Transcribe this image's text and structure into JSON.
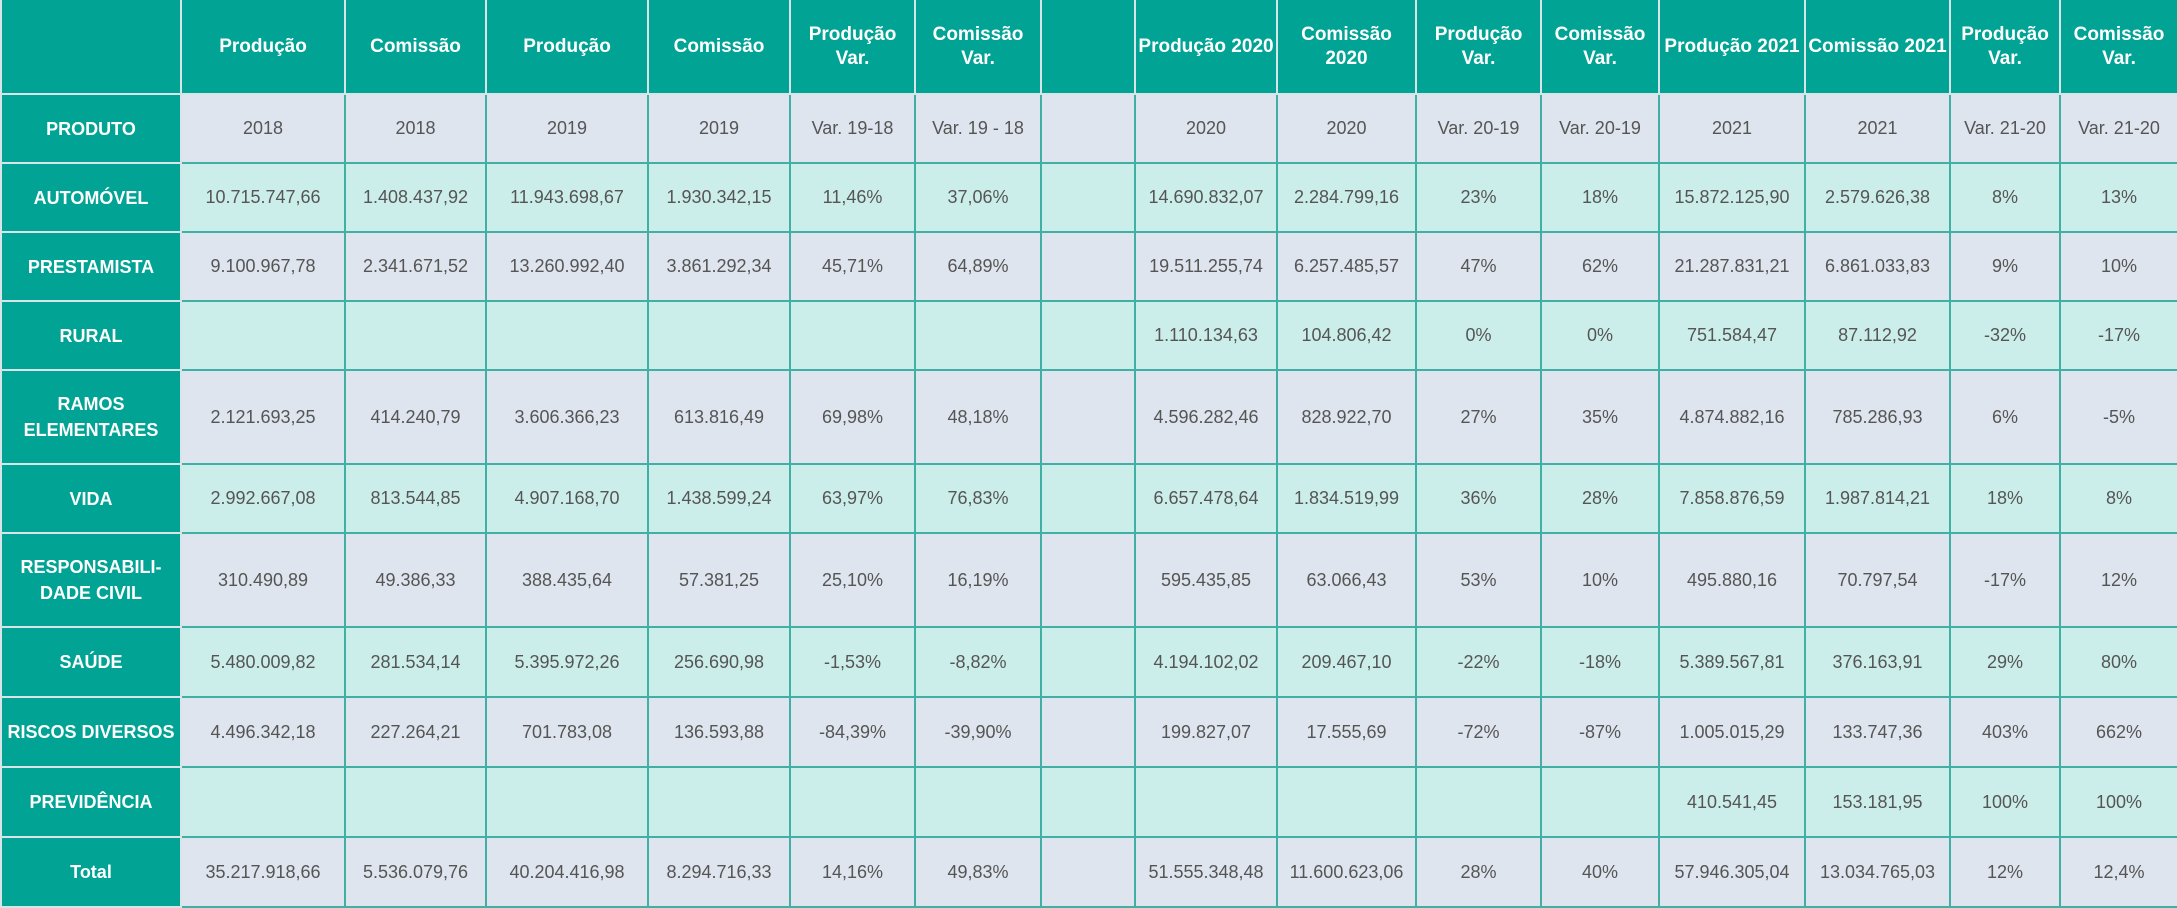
{
  "colors": {
    "header": "#00a394",
    "row_gray": "#dee5ee",
    "row_mint": "#cceeea",
    "text": "#555555"
  },
  "header": [
    "",
    "Produção",
    "Comissão",
    "Produção",
    "Comissão",
    "Produção Var.",
    "Comissão Var.",
    "",
    "Produção 2020",
    "Comissão 2020",
    "Produção Var.",
    "Comissão Var.",
    "Produção 2021",
    "Comissão 2021",
    "Produção Var.",
    "Comissão Var."
  ],
  "subheader": {
    "label": "PRODUTO",
    "cells": [
      "2018",
      "2018",
      "2019",
      "2019",
      "Var. 19-18",
      "Var. 19 - 18",
      "",
      "2020",
      "2020",
      "Var. 20-19",
      "Var. 20-19",
      "2021",
      "2021",
      "Var. 21-20",
      "Var. 21-20"
    ]
  },
  "rows": [
    {
      "label": "AUTOMÓVEL",
      "cells": [
        "10.715.747,66",
        "1.408.437,92",
        "11.943.698,67",
        "1.930.342,15",
        "11,46%",
        "37,06%",
        "",
        "14.690.832,07",
        "2.284.799,16",
        "23%",
        "18%",
        "15.872.125,90",
        "2.579.626,38",
        "8%",
        "13%"
      ]
    },
    {
      "label": "PRESTAMISTA",
      "cells": [
        "9.100.967,78",
        "2.341.671,52",
        "13.260.992,40",
        "3.861.292,34",
        "45,71%",
        "64,89%",
        "",
        "19.511.255,74",
        "6.257.485,57",
        "47%",
        "62%",
        "21.287.831,21",
        "6.861.033,83",
        "9%",
        "10%"
      ]
    },
    {
      "label": "RURAL",
      "cells": [
        "",
        "",
        "",
        "",
        "",
        "",
        "",
        "1.110.134,63",
        "104.806,42",
        "0%",
        "0%",
        "751.584,47",
        "87.112,92",
        "-32%",
        "-17%"
      ]
    },
    {
      "label": "RAMOS ELEMENTARES",
      "cells": [
        "2.121.693,25",
        "414.240,79",
        "3.606.366,23",
        "613.816,49",
        "69,98%",
        "48,18%",
        "",
        "4.596.282,46",
        "828.922,70",
        "27%",
        "35%",
        "4.874.882,16",
        "785.286,93",
        "6%",
        "-5%"
      ]
    },
    {
      "label": "VIDA",
      "cells": [
        "2.992.667,08",
        "813.544,85",
        "4.907.168,70",
        "1.438.599,24",
        "63,97%",
        "76,83%",
        "",
        "6.657.478,64",
        "1.834.519,99",
        "36%",
        "28%",
        "7.858.876,59",
        "1.987.814,21",
        "18%",
        "8%"
      ]
    },
    {
      "label": "RESPONSABILI-DADE CIVIL",
      "cells": [
        "310.490,89",
        "49.386,33",
        "388.435,64",
        "57.381,25",
        "25,10%",
        "16,19%",
        "",
        "595.435,85",
        "63.066,43",
        "53%",
        "10%",
        "495.880,16",
        "70.797,54",
        "-17%",
        "12%"
      ]
    },
    {
      "label": "SAÚDE",
      "cells": [
        "5.480.009,82",
        "281.534,14",
        "5.395.972,26",
        "256.690,98",
        "-1,53%",
        "-8,82%",
        "",
        "4.194.102,02",
        "209.467,10",
        "-22%",
        "-18%",
        "5.389.567,81",
        "376.163,91",
        "29%",
        "80%"
      ]
    },
    {
      "label": "RISCOS DIVERSOS",
      "cells": [
        "4.496.342,18",
        "227.264,21",
        "701.783,08",
        "136.593,88",
        "-84,39%",
        "-39,90%",
        "",
        "199.827,07",
        "17.555,69",
        "-72%",
        "-87%",
        "1.005.015,29",
        "133.747,36",
        "403%",
        "662%"
      ]
    },
    {
      "label": "PREVIDÊNCIA",
      "cells": [
        "",
        "",
        "",
        "",
        "",
        "",
        "",
        "",
        "",
        "",
        "",
        "410.541,45",
        "153.181,95",
        "100%",
        "100%"
      ]
    },
    {
      "label": "Total",
      "cells": [
        "35.217.918,66",
        "5.536.079,76",
        "40.204.416,98",
        "8.294.716,33",
        "14,16%",
        "49,83%",
        "",
        "51.555.348,48",
        "11.600.623,06",
        "28%",
        "40%",
        "57.946.305,04",
        "13.034.765,03",
        "12%",
        "12,4%"
      ]
    }
  ]
}
